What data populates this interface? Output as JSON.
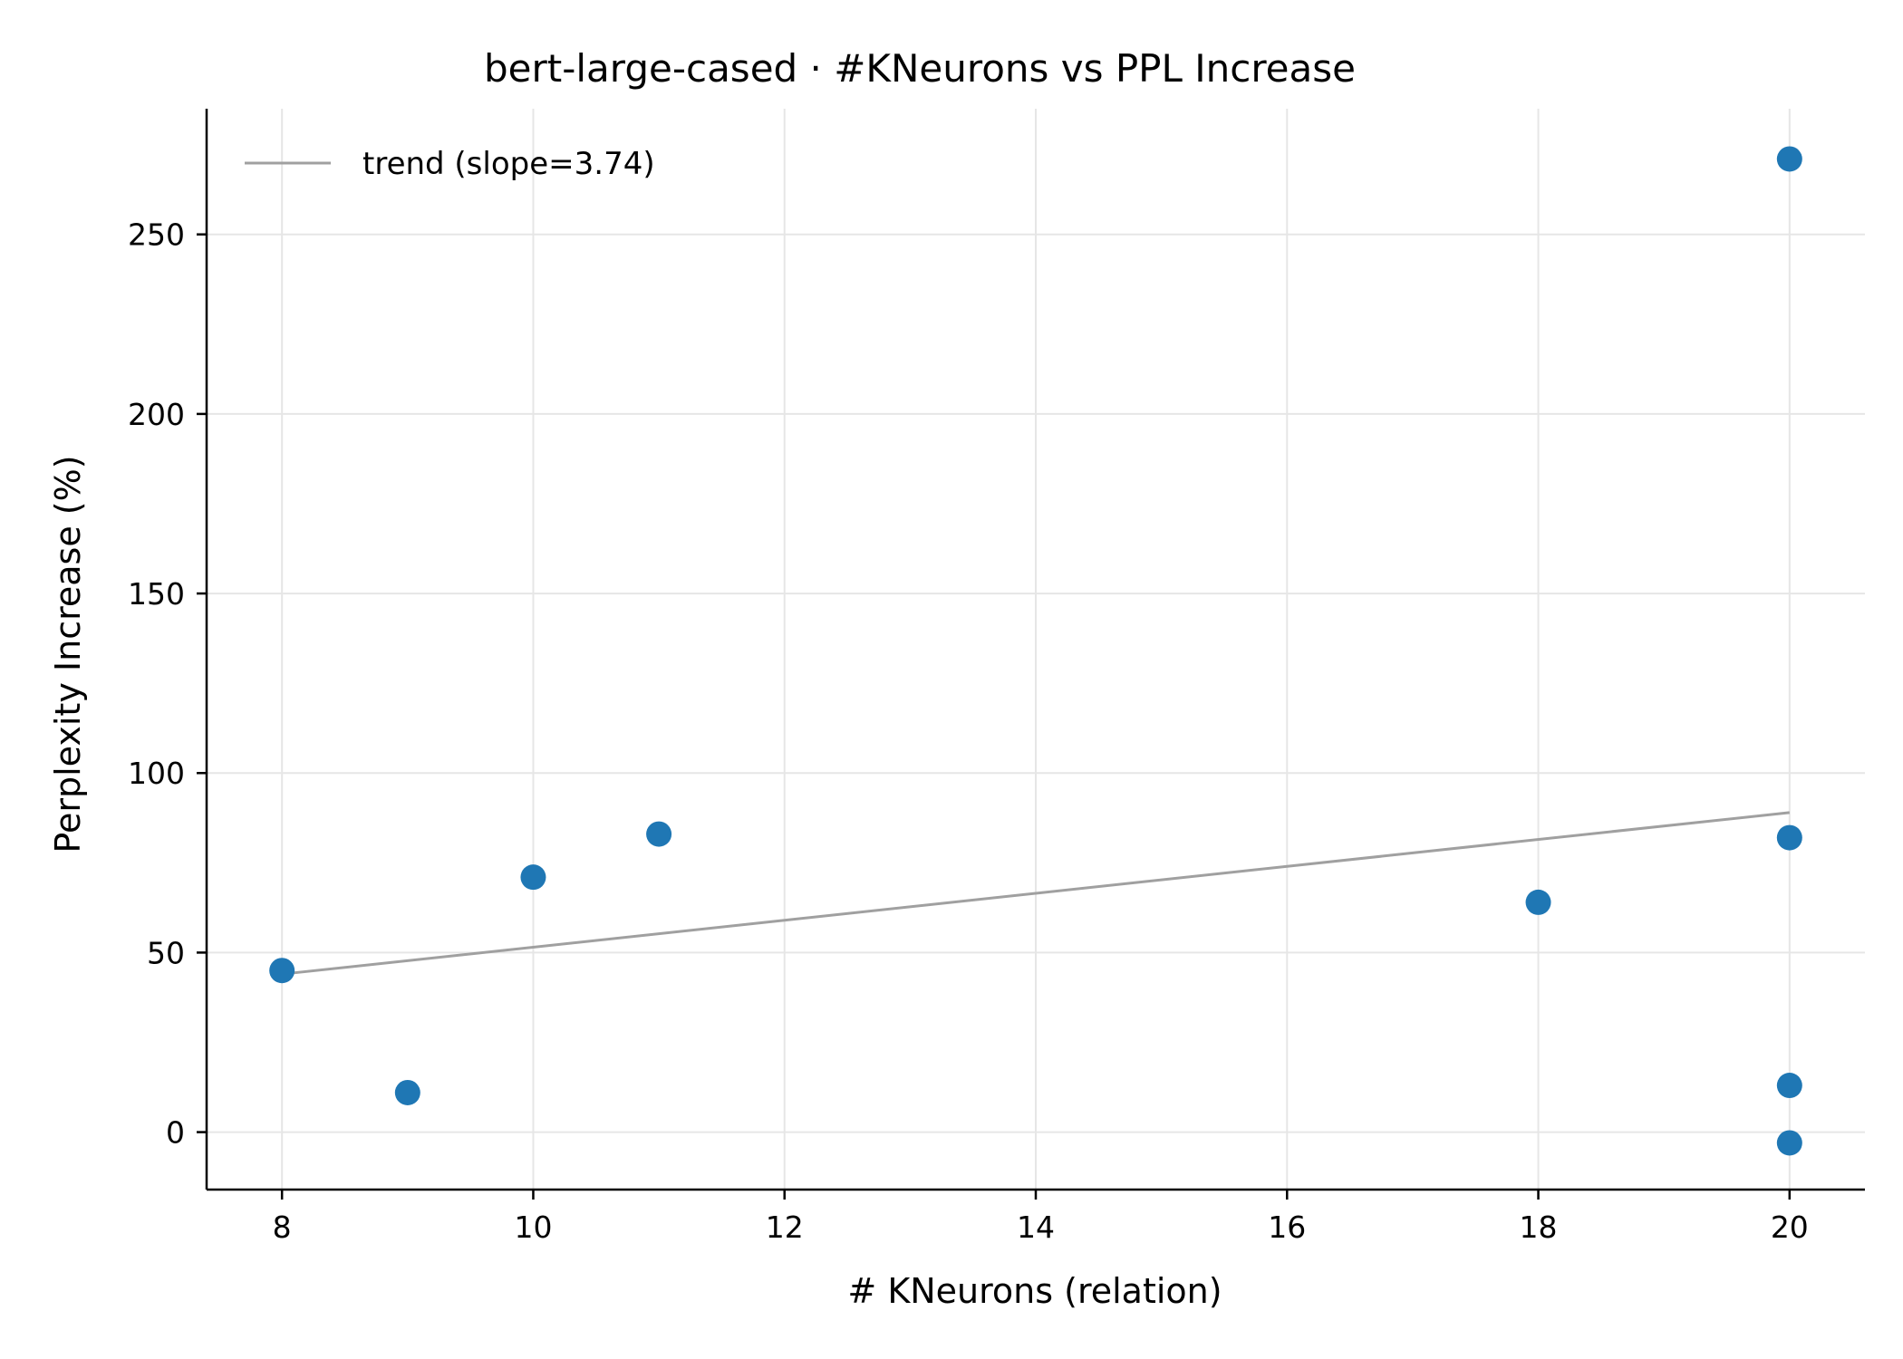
{
  "chart_data": {
    "type": "scatter",
    "title": "bert-large-cased · #KNeurons vs PPL Increase",
    "xlabel": "# KNeurons (relation)",
    "ylabel": "Perplexity Increase (%)",
    "xlim": [
      7.4,
      20.6
    ],
    "ylim": [
      -16,
      285
    ],
    "xticks": [
      8,
      10,
      12,
      14,
      16,
      18,
      20
    ],
    "yticks": [
      0,
      50,
      100,
      150,
      200,
      250
    ],
    "grid": true,
    "legend_position": "top-left",
    "series": [
      {
        "type": "scatter",
        "color": "#1f77b4",
        "points": [
          {
            "x": 8,
            "y": 45
          },
          {
            "x": 9,
            "y": 11
          },
          {
            "x": 10,
            "y": 71
          },
          {
            "x": 11,
            "y": 83
          },
          {
            "x": 18,
            "y": 64
          },
          {
            "x": 20,
            "y": 271
          },
          {
            "x": 20,
            "y": 82
          },
          {
            "x": 20,
            "y": 13
          },
          {
            "x": 20,
            "y": -3
          }
        ]
      },
      {
        "type": "line",
        "name": "trend (slope=3.74)",
        "color": "#a0a0a0",
        "points": [
          {
            "x": 8,
            "y": 44
          },
          {
            "x": 20,
            "y": 89
          }
        ]
      }
    ]
  }
}
